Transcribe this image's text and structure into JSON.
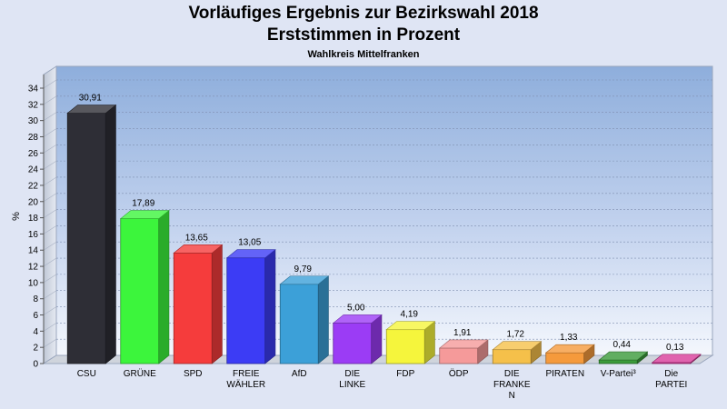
{
  "chart_data": {
    "type": "bar",
    "title": "Vorläufiges Ergebnis zur Bezirkswahl 2018",
    "title2": "Erststimmen in Prozent",
    "subtitle": "Wahlkreis Mittelfranken",
    "ylabel": "%",
    "ylim": [
      0,
      34
    ],
    "yticks": [
      0,
      2,
      4,
      6,
      8,
      10,
      12,
      14,
      16,
      18,
      20,
      22,
      24,
      26,
      28,
      30,
      32,
      34
    ],
    "grid": true,
    "categories": [
      [
        "CSU"
      ],
      [
        "GRÜNE"
      ],
      [
        "SPD"
      ],
      [
        "FREIE",
        "WÄHLER"
      ],
      [
        "AfD"
      ],
      [
        "DIE",
        "LINKE"
      ],
      [
        "FDP"
      ],
      [
        "ÖDP"
      ],
      [
        "DIE",
        "FRANKE",
        "N"
      ],
      [
        "PIRATEN"
      ],
      [
        "V-Partei³"
      ],
      [
        "Die",
        "PARTEI"
      ]
    ],
    "values": [
      30.91,
      17.89,
      13.65,
      13.05,
      9.79,
      5.0,
      4.19,
      1.91,
      1.72,
      1.33,
      0.44,
      0.13
    ],
    "value_labels": [
      "30,91",
      "17,89",
      "13,65",
      "13,05",
      "9,79",
      "5,00",
      "4,19",
      "1,91",
      "1,72",
      "1,33",
      "0,44",
      "0,13"
    ],
    "colors": [
      "#2e2e36",
      "#3cf53c",
      "#f53c3c",
      "#3c3cf5",
      "#3ca0d8",
      "#9b3cf5",
      "#f5f53c",
      "#f59a9a",
      "#f5c04a",
      "#f59a3c",
      "#3a9a3a",
      "#d83c9a"
    ]
  }
}
